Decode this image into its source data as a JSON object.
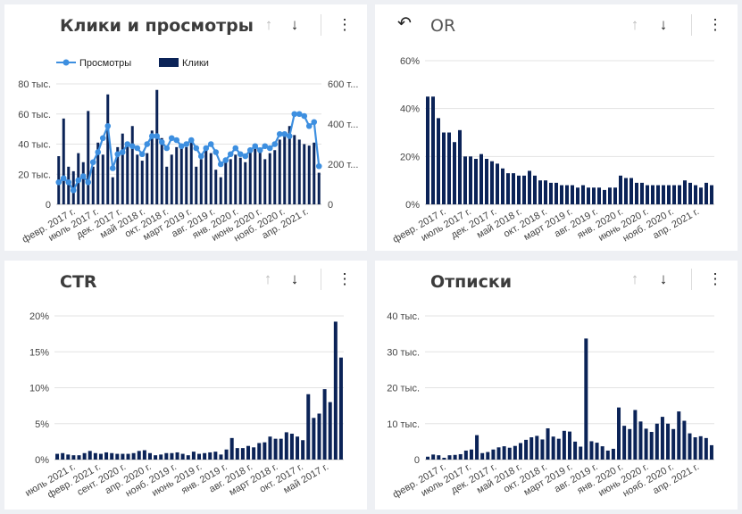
{
  "panels": [
    {
      "title": "Клики и просмотры",
      "toolbar": {
        "up_icon": "arrow-up-icon",
        "down_icon": "arrow-down-icon",
        "menu_icon": "more-vert-icon"
      }
    },
    {
      "title": "OR",
      "toolbar": {
        "undo_icon": "undo-icon",
        "up_icon": "arrow-up-icon",
        "down_icon": "arrow-down-icon",
        "menu_icon": "more-vert-icon"
      }
    },
    {
      "title": "CTR",
      "toolbar": {
        "up_icon": "arrow-up-icon",
        "down_icon": "arrow-down-icon",
        "menu_icon": "more-vert-icon"
      }
    },
    {
      "title": "Отписки",
      "toolbar": {
        "up_icon": "arrow-up-icon",
        "down_icon": "arrow-down-icon",
        "menu_icon": "more-vert-icon"
      }
    }
  ],
  "chart_data": [
    {
      "type": "bar",
      "combo_line": true,
      "title": "Клики и просмотры",
      "legend": {
        "placement": "top-left",
        "line_label": "Просмотры",
        "bar_label": "Клики"
      },
      "colors": {
        "bar": "#0b2357",
        "line": "#3d8fe0"
      },
      "ylim": [
        0,
        80
      ],
      "y2lim": [
        0,
        600
      ],
      "yticks": [
        "0",
        "20 тыс.",
        "40 тыс.",
        "60 тыс.",
        "80 тыс."
      ],
      "y2ticks": [
        "0",
        "200 т...",
        "400 т...",
        "600 т..."
      ],
      "xtick_labels": [
        "февр. 2017 г.",
        "июль 2017 г.",
        "дек. 2017 г.",
        "май 2018 г.",
        "окт. 2018 г.",
        "март 2019 г.",
        "авг. 2019 г.",
        "янв. 2020 г.",
        "июнь 2020 г.",
        "нояб. 2020 г.",
        "апр. 2021 г."
      ],
      "bars_thousands": [
        32,
        57,
        25,
        22,
        34,
        28,
        62,
        25,
        41,
        33,
        73,
        18,
        38,
        47,
        39,
        52,
        33,
        29,
        34,
        49,
        76,
        44,
        25,
        33,
        38,
        40,
        38,
        43,
        25,
        30,
        38,
        34,
        23,
        18,
        29,
        30,
        33,
        31,
        28,
        35,
        37,
        35,
        30,
        34,
        36,
        43,
        48,
        52,
        46,
        43,
        40,
        39,
        41,
        21
      ],
      "line_thousands": [
        110,
        130,
        110,
        70,
        120,
        140,
        110,
        210,
        260,
        330,
        390,
        180,
        250,
        260,
        300,
        290,
        280,
        250,
        300,
        340,
        340,
        310,
        280,
        330,
        320,
        290,
        300,
        320,
        280,
        240,
        280,
        300,
        260,
        200,
        220,
        250,
        280,
        250,
        240,
        270,
        290,
        270,
        290,
        280,
        300,
        350,
        350,
        340,
        450,
        450,
        440,
        390,
        410,
        190
      ]
    },
    {
      "type": "bar",
      "title": "OR",
      "colors": {
        "bar": "#0b2357"
      },
      "ylim": [
        0,
        60
      ],
      "yticks": [
        "0%",
        "20%",
        "40%",
        "60%"
      ],
      "xtick_labels": [
        "февр. 2017 г.",
        "июль 2017 г.",
        "дек. 2017 г.",
        "май 2018 г.",
        "окт. 2018 г.",
        "март 2019 г.",
        "авг. 2019 г.",
        "янв. 2020 г.",
        "июнь 2020 г.",
        "нояб. 2020 г.",
        "апр. 2021 г."
      ],
      "values_percent": [
        45,
        45,
        36,
        30,
        30,
        26,
        31,
        20,
        20,
        19,
        21,
        19,
        18,
        17,
        15,
        13,
        13,
        12,
        12,
        14,
        12,
        10,
        10,
        9,
        9,
        8,
        8,
        8,
        7,
        8,
        7,
        7,
        7,
        6,
        7,
        7,
        12,
        11,
        11,
        9,
        9,
        8,
        8,
        8,
        8,
        8,
        8,
        8,
        10,
        9,
        8,
        7,
        9,
        8
      ]
    },
    {
      "type": "bar",
      "title": "CTR",
      "colors": {
        "bar": "#0b2357"
      },
      "ylim": [
        0,
        20
      ],
      "yticks": [
        "0%",
        "5%",
        "10%",
        "15%",
        "20%"
      ],
      "xtick_labels": [
        "июль 2021 г.",
        "февр. 2021 г.",
        "сент. 2020 г.",
        "апр. 2020 г.",
        "нояб. 2019 г.",
        "июнь 2019 г.",
        "янв. 2019 г.",
        "авг. 2018 г.",
        "март 2018 г.",
        "окт. 2017 г.",
        "май 2017 г."
      ],
      "values_percent": [
        0.8,
        0.9,
        0.7,
        0.6,
        0.6,
        0.9,
        1.2,
        0.9,
        0.8,
        1.0,
        0.9,
        0.8,
        0.8,
        0.8,
        0.9,
        1.2,
        1.3,
        0.9,
        0.6,
        0.7,
        0.9,
        0.9,
        1.0,
        0.8,
        0.6,
        1.1,
        0.8,
        0.9,
        1.0,
        1.1,
        0.7,
        1.4,
        3.0,
        1.6,
        1.6,
        1.9,
        1.7,
        2.3,
        2.4,
        3.2,
        2.9,
        2.9,
        3.8,
        3.6,
        3.2,
        2.7,
        9.1,
        5.8,
        6.4,
        9.8,
        8.0,
        19.2,
        14.2
      ]
    },
    {
      "type": "bar",
      "title": "Отписки",
      "colors": {
        "bar": "#0b2357"
      },
      "ylim": [
        0,
        40
      ],
      "yticks": [
        "0",
        "10 тыс.",
        "20 тыс.",
        "30 тыс.",
        "40 тыс."
      ],
      "xtick_labels": [
        "февр. 2017 г.",
        "июль 2017 г.",
        "дек. 2017 г.",
        "май 2018 г.",
        "окт. 2018 г.",
        "март 2019 г.",
        "авг. 2019 г.",
        "янв. 2020 г.",
        "июнь 2020 г.",
        "нояб. 2020 г.",
        "апр. 2021 г."
      ],
      "values_thousands": [
        0.8,
        1.4,
        1.2,
        0.5,
        1.2,
        1.3,
        1.5,
        2.5,
        2.8,
        6.8,
        1.8,
        2.1,
        2.8,
        3.4,
        3.7,
        3.3,
        3.8,
        4.6,
        5.5,
        6.2,
        6.6,
        5.6,
        8.7,
        6.4,
        5.8,
        8.0,
        7.8,
        5.0,
        3.6,
        33.7,
        5.1,
        4.7,
        3.7,
        2.5,
        3.0,
        14.5,
        9.4,
        8.5,
        13.8,
        10.6,
        8.6,
        7.7,
        10.0,
        11.9,
        10.0,
        8.5,
        13.4,
        10.8,
        7.3,
        6.2,
        6.5,
        6.0,
        4.0
      ]
    }
  ]
}
